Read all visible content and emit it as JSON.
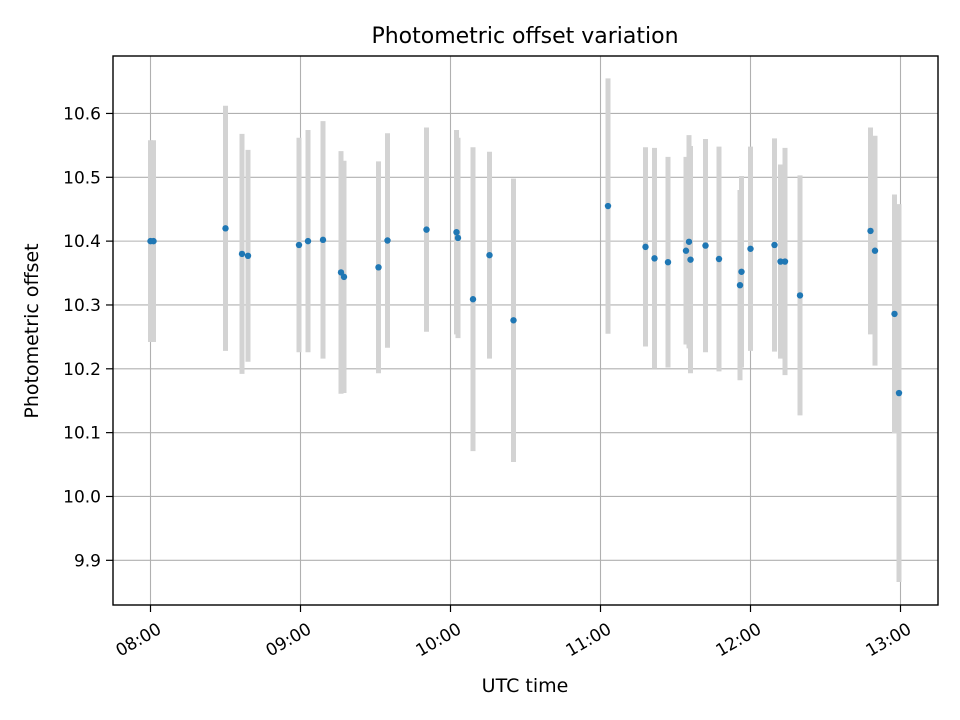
{
  "chart_data": {
    "type": "scatter",
    "title": "Photometric offset variation",
    "xlabel": "UTC time",
    "ylabel": "Photometric offset",
    "x_unit": "hours (UTC)",
    "xlim": [
      7.75,
      13.25
    ],
    "ylim": [
      9.83,
      10.69
    ],
    "x_ticks": [
      {
        "value": 8,
        "label": "08:00"
      },
      {
        "value": 9,
        "label": "09:00"
      },
      {
        "value": 10,
        "label": "10:00"
      },
      {
        "value": 11,
        "label": "11:00"
      },
      {
        "value": 12,
        "label": "12:00"
      },
      {
        "value": 13,
        "label": "13:00"
      }
    ],
    "y_ticks": [
      {
        "value": 9.9,
        "label": "9.9"
      },
      {
        "value": 10.0,
        "label": "10.0"
      },
      {
        "value": 10.1,
        "label": "10.1"
      },
      {
        "value": 10.2,
        "label": "10.2"
      },
      {
        "value": 10.3,
        "label": "10.3"
      },
      {
        "value": 10.4,
        "label": "10.4"
      },
      {
        "value": 10.5,
        "label": "10.5"
      },
      {
        "value": 10.6,
        "label": "10.6"
      }
    ],
    "grid": true,
    "legend": "none",
    "colors": {
      "point": "#1f77b4",
      "errorbar": "#d3d3d3",
      "grid": "#b0b0b0",
      "axes": "#000000"
    },
    "series": [
      {
        "points": [
          {
            "x": 8.0,
            "y": 10.4,
            "err": 0.158
          },
          {
            "x": 8.02,
            "y": 10.4,
            "err": 0.158
          },
          {
            "x": 8.5,
            "y": 10.42,
            "err": 0.192
          },
          {
            "x": 8.61,
            "y": 10.38,
            "err": 0.188
          },
          {
            "x": 8.65,
            "y": 10.377,
            "err": 0.166
          },
          {
            "x": 8.99,
            "y": 10.394,
            "err": 0.168
          },
          {
            "x": 9.05,
            "y": 10.4,
            "err": 0.174
          },
          {
            "x": 9.15,
            "y": 10.402,
            "err": 0.186
          },
          {
            "x": 9.27,
            "y": 10.351,
            "err": 0.19
          },
          {
            "x": 9.29,
            "y": 10.344,
            "err": 0.182
          },
          {
            "x": 9.52,
            "y": 10.359,
            "err": 0.166
          },
          {
            "x": 9.58,
            "y": 10.401,
            "err": 0.168
          },
          {
            "x": 9.84,
            "y": 10.418,
            "err": 0.16
          },
          {
            "x": 10.04,
            "y": 10.414,
            "err": 0.16
          },
          {
            "x": 10.05,
            "y": 10.405,
            "err": 0.157
          },
          {
            "x": 10.15,
            "y": 10.309,
            "err": 0.238
          },
          {
            "x": 10.26,
            "y": 10.378,
            "err": 0.162
          },
          {
            "x": 10.42,
            "y": 10.276,
            "err": 0.222
          },
          {
            "x": 11.05,
            "y": 10.455,
            "err": 0.2
          },
          {
            "x": 11.3,
            "y": 10.391,
            "err": 0.156
          },
          {
            "x": 11.36,
            "y": 10.373,
            "err": 0.173
          },
          {
            "x": 11.45,
            "y": 10.367,
            "err": 0.165
          },
          {
            "x": 11.57,
            "y": 10.385,
            "err": 0.147
          },
          {
            "x": 11.59,
            "y": 10.399,
            "err": 0.167
          },
          {
            "x": 11.6,
            "y": 10.371,
            "err": 0.178
          },
          {
            "x": 11.7,
            "y": 10.393,
            "err": 0.167
          },
          {
            "x": 11.79,
            "y": 10.372,
            "err": 0.176
          },
          {
            "x": 11.93,
            "y": 10.331,
            "err": 0.149
          },
          {
            "x": 11.94,
            "y": 10.352,
            "err": 0.15
          },
          {
            "x": 12.0,
            "y": 10.388,
            "err": 0.16
          },
          {
            "x": 12.16,
            "y": 10.394,
            "err": 0.167
          },
          {
            "x": 12.2,
            "y": 10.368,
            "err": 0.152
          },
          {
            "x": 12.23,
            "y": 10.368,
            "err": 0.178
          },
          {
            "x": 12.33,
            "y": 10.315,
            "err": 0.188
          },
          {
            "x": 12.8,
            "y": 10.416,
            "err": 0.162
          },
          {
            "x": 12.83,
            "y": 10.385,
            "err": 0.18
          },
          {
            "x": 12.96,
            "y": 10.286,
            "err": 0.187
          },
          {
            "x": 12.99,
            "y": 10.162,
            "err": 0.296
          }
        ]
      }
    ]
  }
}
